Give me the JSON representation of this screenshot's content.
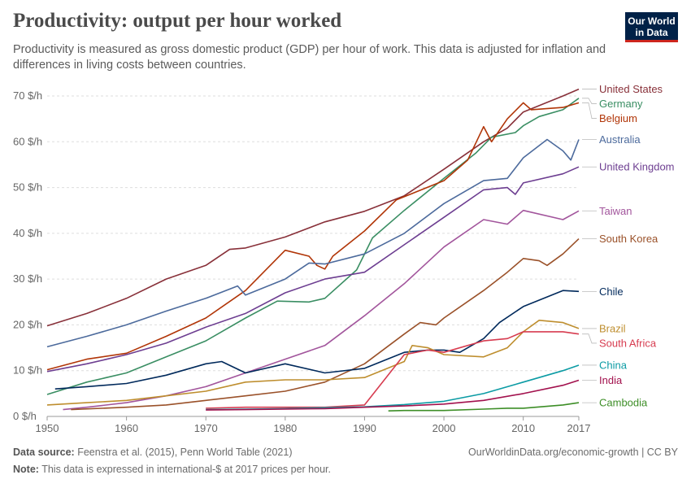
{
  "header": {
    "title": "Productivity: output per hour worked",
    "subtitle": "Productivity is measured as gross domestic product (GDP) per hour of work. This data is adjusted for inflation and differences in living costs between countries.",
    "logo_line1": "Our World",
    "logo_line2": "in Data"
  },
  "footer": {
    "source_label": "Data source:",
    "source_text": "Feenstra et al. (2015), Penn World Table (2021)",
    "link_text": "OurWorldinData.org/economic-growth | CC BY",
    "note_label": "Note:",
    "note_text": "This data is expressed in international-$ at 2017 prices per hour."
  },
  "chart_data": {
    "type": "line",
    "title": "Productivity: output per hour worked",
    "xlim": [
      1950,
      2017
    ],
    "ylim": [
      0,
      70
    ],
    "x_ticks": [
      {
        "value": 1950,
        "label": "1950"
      },
      {
        "value": 1960,
        "label": "1960"
      },
      {
        "value": 1970,
        "label": "1970"
      },
      {
        "value": 1980,
        "label": "1980"
      },
      {
        "value": 1990,
        "label": "1990"
      },
      {
        "value": 2000,
        "label": "2000"
      },
      {
        "value": 2010,
        "label": "2010"
      },
      {
        "value": 2017,
        "label": "2017"
      }
    ],
    "y_ticks": [
      {
        "value": 0,
        "label": "0 $/h"
      },
      {
        "value": 10,
        "label": "10 $/h"
      },
      {
        "value": 20,
        "label": "20 $/h"
      },
      {
        "value": 30,
        "label": "30 $/h"
      },
      {
        "value": 40,
        "label": "40 $/h"
      },
      {
        "value": 50,
        "label": "50 $/h"
      },
      {
        "value": 60,
        "label": "60 $/h"
      },
      {
        "value": 70,
        "label": "70 $/h"
      }
    ],
    "grid": true,
    "legend": "right, labels at line ends",
    "series": [
      {
        "name": "United States",
        "color": "#883039",
        "label_value": 71.5,
        "points": [
          [
            1950,
            19.8
          ],
          [
            1955,
            22.5
          ],
          [
            1960,
            25.8
          ],
          [
            1965,
            30
          ],
          [
            1970,
            33
          ],
          [
            1973,
            36.5
          ],
          [
            1975,
            36.8
          ],
          [
            1980,
            39.2
          ],
          [
            1985,
            42.5
          ],
          [
            1990,
            44.8
          ],
          [
            1995,
            48.2
          ],
          [
            2000,
            54
          ],
          [
            2005,
            60
          ],
          [
            2008,
            63
          ],
          [
            2010,
            66.5
          ],
          [
            2015,
            70
          ],
          [
            2017,
            71.5
          ]
        ]
      },
      {
        "name": "Germany",
        "color": "#3a8e63",
        "label_value": 69.5,
        "points": [
          [
            1950,
            4.8
          ],
          [
            1955,
            7.5
          ],
          [
            1960,
            9.5
          ],
          [
            1965,
            13
          ],
          [
            1970,
            16.5
          ],
          [
            1975,
            21.5
          ],
          [
            1979,
            25.2
          ],
          [
            1983,
            25
          ],
          [
            1985,
            25.8
          ],
          [
            1989,
            32
          ],
          [
            1991,
            39
          ],
          [
            1995,
            45
          ],
          [
            2000,
            52
          ],
          [
            2004,
            57.5
          ],
          [
            2006,
            61
          ],
          [
            2009,
            62
          ],
          [
            2010,
            63.5
          ],
          [
            2012,
            65.5
          ],
          [
            2015,
            67
          ],
          [
            2017,
            69.5
          ]
        ]
      },
      {
        "name": "Belgium",
        "color": "#b13507",
        "label_value": 68.5,
        "points": [
          [
            1950,
            10.2
          ],
          [
            1955,
            12.5
          ],
          [
            1960,
            13.8
          ],
          [
            1965,
            17.5
          ],
          [
            1970,
            21.5
          ],
          [
            1975,
            27.5
          ],
          [
            1980,
            36.3
          ],
          [
            1983,
            35
          ],
          [
            1984,
            33
          ],
          [
            1985,
            32.2
          ],
          [
            1986,
            35
          ],
          [
            1990,
            40.5
          ],
          [
            1994,
            47.3
          ],
          [
            2000,
            51.5
          ],
          [
            2003,
            56
          ],
          [
            2005,
            63.3
          ],
          [
            2006,
            60
          ],
          [
            2008,
            65
          ],
          [
            2010,
            68.5
          ],
          [
            2011,
            67
          ],
          [
            2015,
            67.5
          ],
          [
            2017,
            68.5
          ]
        ]
      },
      {
        "name": "Australia",
        "color": "#4c6a9c",
        "label_value": 60.5,
        "points": [
          [
            1950,
            15.2
          ],
          [
            1955,
            17.5
          ],
          [
            1960,
            20
          ],
          [
            1965,
            23
          ],
          [
            1970,
            25.8
          ],
          [
            1974,
            28.5
          ],
          [
            1975,
            26.5
          ],
          [
            1980,
            30
          ],
          [
            1983,
            33.5
          ],
          [
            1985,
            33.3
          ],
          [
            1990,
            35.5
          ],
          [
            1995,
            40
          ],
          [
            2000,
            46.5
          ],
          [
            2005,
            51.5
          ],
          [
            2008,
            52
          ],
          [
            2010,
            56.5
          ],
          [
            2013,
            60.5
          ],
          [
            2015,
            58
          ],
          [
            2016,
            56
          ],
          [
            2017,
            60.5
          ]
        ]
      },
      {
        "name": "United Kingdom",
        "color": "#6d3e91",
        "label_value": 54.5,
        "points": [
          [
            1950,
            9.8
          ],
          [
            1955,
            11.5
          ],
          [
            1960,
            13.5
          ],
          [
            1965,
            16
          ],
          [
            1970,
            19.5
          ],
          [
            1975,
            22.5
          ],
          [
            1980,
            27
          ],
          [
            1985,
            30
          ],
          [
            1990,
            31.5
          ],
          [
            1995,
            37.5
          ],
          [
            2000,
            43.5
          ],
          [
            2005,
            49.5
          ],
          [
            2008,
            50
          ],
          [
            2009,
            48.5
          ],
          [
            2010,
            51
          ],
          [
            2015,
            53
          ],
          [
            2017,
            54.5
          ]
        ]
      },
      {
        "name": "Taiwan",
        "color": "#a2559c",
        "label_value": 44.9,
        "points": [
          [
            1952,
            1.5
          ],
          [
            1955,
            2
          ],
          [
            1960,
            3
          ],
          [
            1965,
            4.5
          ],
          [
            1970,
            6.5
          ],
          [
            1975,
            9.5
          ],
          [
            1980,
            12.5
          ],
          [
            1985,
            15.5
          ],
          [
            1990,
            22
          ],
          [
            1995,
            29
          ],
          [
            2000,
            37
          ],
          [
            2005,
            43
          ],
          [
            2008,
            42
          ],
          [
            2010,
            45
          ],
          [
            2015,
            43
          ],
          [
            2017,
            44.9
          ]
        ]
      },
      {
        "name": "South Korea",
        "color": "#9a5129",
        "label_value": 38.8,
        "points": [
          [
            1953,
            1.5
          ],
          [
            1960,
            2
          ],
          [
            1965,
            2.5
          ],
          [
            1970,
            3.5
          ],
          [
            1975,
            4.5
          ],
          [
            1980,
            5.5
          ],
          [
            1985,
            7.5
          ],
          [
            1990,
            11.5
          ],
          [
            1995,
            18
          ],
          [
            1997,
            20.5
          ],
          [
            1999,
            20
          ],
          [
            2000,
            21.5
          ],
          [
            2005,
            27.5
          ],
          [
            2008,
            31.5
          ],
          [
            2010,
            34.5
          ],
          [
            2012,
            34
          ],
          [
            2013,
            33
          ],
          [
            2015,
            35.5
          ],
          [
            2017,
            38.8
          ]
        ]
      },
      {
        "name": "Chile",
        "color": "#00295b",
        "label_value": 27.3,
        "points": [
          [
            1951,
            6
          ],
          [
            1955,
            6.5
          ],
          [
            1960,
            7.2
          ],
          [
            1965,
            9
          ],
          [
            1970,
            11.5
          ],
          [
            1972,
            12
          ],
          [
            1975,
            9.5
          ],
          [
            1980,
            11.5
          ],
          [
            1985,
            9.5
          ],
          [
            1990,
            10.5
          ],
          [
            1995,
            14
          ],
          [
            1998,
            14.5
          ],
          [
            2000,
            14.5
          ],
          [
            2002,
            14
          ],
          [
            2005,
            17
          ],
          [
            2007,
            20.5
          ],
          [
            2010,
            24
          ],
          [
            2015,
            27.5
          ],
          [
            2017,
            27.3
          ]
        ]
      },
      {
        "name": "Brazil",
        "color": "#be8e2e",
        "label_value": 19.2,
        "points": [
          [
            1950,
            2.5
          ],
          [
            1955,
            3
          ],
          [
            1960,
            3.5
          ],
          [
            1965,
            4.5
          ],
          [
            1970,
            5.5
          ],
          [
            1975,
            7.5
          ],
          [
            1980,
            8
          ],
          [
            1985,
            8
          ],
          [
            1990,
            8.5
          ],
          [
            1995,
            12
          ],
          [
            1996,
            15.5
          ],
          [
            1998,
            15
          ],
          [
            2000,
            13.5
          ],
          [
            2005,
            13
          ],
          [
            2008,
            15
          ],
          [
            2010,
            18.5
          ],
          [
            2012,
            21
          ],
          [
            2015,
            20.5
          ],
          [
            2017,
            19.2
          ]
        ]
      },
      {
        "name": "South Africa",
        "color": "#d73c50",
        "label_value": 18.0,
        "points": [
          [
            1970,
            1.8
          ],
          [
            1975,
            2
          ],
          [
            1980,
            2
          ],
          [
            1985,
            2
          ],
          [
            1990,
            2.5
          ],
          [
            1995,
            13.5
          ],
          [
            1998,
            14.5
          ],
          [
            2000,
            14
          ],
          [
            2005,
            16.5
          ],
          [
            2008,
            17
          ],
          [
            2010,
            18.5
          ],
          [
            2015,
            18.5
          ],
          [
            2017,
            18
          ]
        ]
      },
      {
        "name": "China",
        "color": "#0b9ba4",
        "label_value": 11.2,
        "points": [
          [
            1970,
            1.5
          ],
          [
            1975,
            1.6
          ],
          [
            1980,
            1.7
          ],
          [
            1985,
            1.9
          ],
          [
            1990,
            2.1
          ],
          [
            1995,
            2.6
          ],
          [
            2000,
            3.3
          ],
          [
            2005,
            5
          ],
          [
            2010,
            7.5
          ],
          [
            2015,
            10
          ],
          [
            2017,
            11.2
          ]
        ]
      },
      {
        "name": "India",
        "color": "#a2114d",
        "label_value": 7.9,
        "points": [
          [
            1970,
            1.4
          ],
          [
            1975,
            1.5
          ],
          [
            1980,
            1.6
          ],
          [
            1985,
            1.7
          ],
          [
            1990,
            2
          ],
          [
            1995,
            2.3
          ],
          [
            2000,
            2.7
          ],
          [
            2005,
            3.5
          ],
          [
            2010,
            5
          ],
          [
            2015,
            6.8
          ],
          [
            2017,
            7.9
          ]
        ]
      },
      {
        "name": "Cambodia",
        "color": "#3d8e27",
        "label_value": 3.0,
        "points": [
          [
            1993,
            1.2
          ],
          [
            1995,
            1.3
          ],
          [
            2000,
            1.3
          ],
          [
            2005,
            1.6
          ],
          [
            2008,
            1.8
          ],
          [
            2010,
            1.8
          ],
          [
            2015,
            2.5
          ],
          [
            2017,
            3.0
          ]
        ]
      }
    ]
  }
}
